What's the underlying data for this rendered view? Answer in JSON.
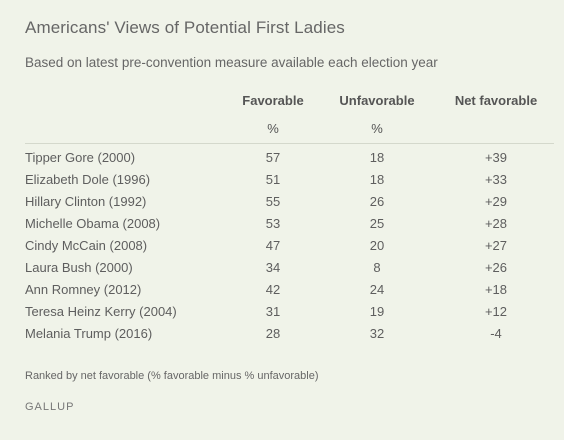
{
  "title": "Americans' Views of Potential First Ladies",
  "subtitle": "Based on latest pre-convention measure available each election year",
  "columns": {
    "favorable": "Favorable",
    "unfavorable": "Unfavorable",
    "net": "Net favorable",
    "unit_favorable": "%",
    "unit_unfavorable": "%"
  },
  "note": "Ranked by net favorable (% favorable minus % unfavorable)",
  "source": "GALLUP",
  "chart_data": {
    "type": "table",
    "title": "Americans' Views of Potential First Ladies",
    "subtitle": "Based on latest pre-convention measure available each election year",
    "headers": [
      "",
      "Favorable",
      "Unfavorable",
      "Net favorable"
    ],
    "rows": [
      {
        "name": "Tipper Gore (2000)",
        "favorable": "57",
        "unfavorable": "18",
        "net": "+39"
      },
      {
        "name": "Elizabeth Dole (1996)",
        "favorable": "51",
        "unfavorable": "18",
        "net": "+33"
      },
      {
        "name": "Hillary Clinton (1992)",
        "favorable": "55",
        "unfavorable": "26",
        "net": "+29"
      },
      {
        "name": "Michelle Obama (2008)",
        "favorable": "53",
        "unfavorable": "25",
        "net": "+28"
      },
      {
        "name": "Cindy McCain (2008)",
        "favorable": "47",
        "unfavorable": "20",
        "net": "+27"
      },
      {
        "name": "Laura Bush (2000)",
        "favorable": "34",
        "unfavorable": "8",
        "net": "+26"
      },
      {
        "name": "Ann Romney (2012)",
        "favorable": "42",
        "unfavorable": "24",
        "net": "+18"
      },
      {
        "name": "Teresa Heinz Kerry (2004)",
        "favorable": "31",
        "unfavorable": "19",
        "net": "+12"
      },
      {
        "name": "Melania Trump (2016)",
        "favorable": "28",
        "unfavorable": "32",
        "net": "-4"
      }
    ]
  }
}
